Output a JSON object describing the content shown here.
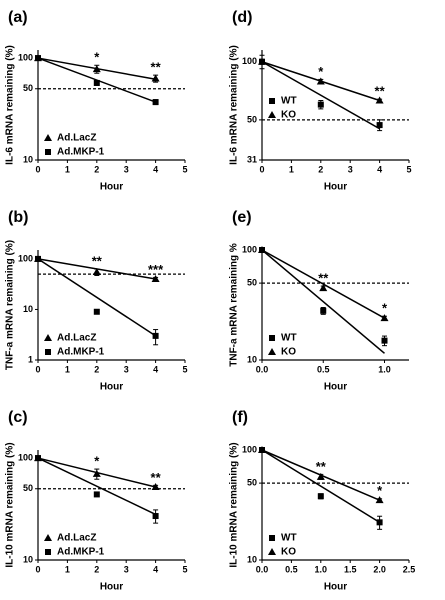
{
  "chart_data": [
    {
      "type": "scatter",
      "label": "(a)",
      "y_label": "IL-6 mRNA remaining (%)",
      "x_label": "Hour",
      "yscale": "log",
      "xlim": [
        0,
        5
      ],
      "xticks": [
        0,
        1,
        2,
        3,
        4,
        5
      ],
      "ylim": [
        10,
        120
      ],
      "yticks": [
        10,
        50,
        100
      ],
      "reference_line": 50,
      "legend": "lower left",
      "series": [
        {
          "name": "Ad.LacZ",
          "marker": "triangle",
          "color": "#000000",
          "x": [
            0,
            2,
            4
          ],
          "values": [
            100,
            78,
            63
          ],
          "errors": [
            5,
            7,
            5
          ],
          "fit": {
            "x": [
              0,
              4
            ],
            "values": [
              100,
              62
            ]
          }
        },
        {
          "name": "Ad.MKP-1",
          "marker": "square",
          "color": "#000000",
          "x": [
            0,
            2,
            4
          ],
          "values": [
            100,
            57,
            37
          ],
          "errors": [
            3,
            3,
            2
          ],
          "fit": {
            "x": [
              0,
              4
            ],
            "values": [
              100,
              37
            ]
          }
        }
      ],
      "annotations": [
        {
          "x": 2,
          "text": "*"
        },
        {
          "x": 4,
          "text": "**"
        }
      ]
    },
    {
      "type": "scatter",
      "label": "(b)",
      "y_label": "TNF-a mRNA remaining (%)",
      "x_label": "Hour",
      "yscale": "log",
      "xlim": [
        0,
        5
      ],
      "xticks": [
        0,
        1,
        2,
        3,
        4,
        5
      ],
      "ylim": [
        1,
        150
      ],
      "yticks": [
        1,
        10,
        100
      ],
      "reference_line": 50,
      "legend": "lower left",
      "series": [
        {
          "name": "Ad.LacZ",
          "marker": "triangle",
          "color": "#000000",
          "x": [
            0,
            2,
            4
          ],
          "values": [
            100,
            55,
            40
          ],
          "errors": [
            5,
            8,
            3
          ],
          "fit": {
            "x": [
              0,
              4
            ],
            "values": [
              100,
              40
            ]
          }
        },
        {
          "name": "Ad.MKP-1",
          "marker": "square",
          "color": "#000000",
          "x": [
            0,
            2,
            4
          ],
          "values": [
            100,
            9,
            3
          ],
          "errors": [
            5,
            0.5,
            1
          ],
          "fit": {
            "x": [
              0,
              4
            ],
            "values": [
              100,
              3
            ]
          }
        }
      ],
      "annotations": [
        {
          "x": 2,
          "text": "**"
        },
        {
          "x": 4,
          "text": "***"
        }
      ]
    },
    {
      "type": "scatter",
      "label": "(c)",
      "y_label": "IL-10 mRNA remaining (%)",
      "x_label": "Hour",
      "yscale": "log",
      "xlim": [
        0,
        5
      ],
      "xticks": [
        0,
        1,
        2,
        3,
        4,
        5
      ],
      "ylim": [
        10,
        120
      ],
      "yticks": [
        10,
        50,
        100
      ],
      "reference_line": 50,
      "legend": "lower left",
      "series": [
        {
          "name": "Ad.LacZ",
          "marker": "triangle",
          "color": "#000000",
          "x": [
            0,
            2,
            4
          ],
          "values": [
            100,
            70,
            52
          ],
          "errors": [
            5,
            8,
            2
          ],
          "fit": {
            "x": [
              0,
              4
            ],
            "values": [
              100,
              52
            ]
          }
        },
        {
          "name": "Ad.MKP-1",
          "marker": "square",
          "color": "#000000",
          "x": [
            0,
            2,
            4
          ],
          "values": [
            100,
            44,
            27
          ],
          "errors": [
            3,
            2,
            4
          ],
          "fit": {
            "x": [
              0,
              4
            ],
            "values": [
              100,
              28
            ]
          }
        }
      ],
      "annotations": [
        {
          "x": 2,
          "text": "*"
        },
        {
          "x": 4,
          "text": "**"
        }
      ]
    },
    {
      "type": "scatter",
      "label": "(d)",
      "y_label": "IL-6 mRNA remaining (%)",
      "x_label": "Hour",
      "yscale": "log",
      "xlim": [
        0,
        5
      ],
      "xticks": [
        0,
        1,
        2,
        3,
        4,
        5
      ],
      "ylim": [
        31,
        115
      ],
      "yticks": [
        31,
        50,
        100
      ],
      "reference_line": 50,
      "legend": "center left",
      "series": [
        {
          "name": "WT",
          "marker": "square",
          "color": "#000000",
          "x": [
            0,
            2,
            4
          ],
          "values": [
            100,
            60,
            47
          ],
          "errors": [
            8,
            3,
            3
          ],
          "fit": {
            "x": [
              0,
              4
            ],
            "values": [
              100,
              45
            ]
          }
        },
        {
          "name": "KO",
          "marker": "triangle",
          "color": "#000000",
          "x": [
            0,
            2,
            4
          ],
          "values": [
            100,
            79,
            63
          ],
          "errors": [
            3,
            2,
            1
          ],
          "fit": {
            "x": [
              0,
              4
            ],
            "values": [
              100,
              63
            ]
          }
        }
      ],
      "annotations": [
        {
          "x": 2,
          "text": "*"
        },
        {
          "x": 4,
          "text": "**"
        }
      ]
    },
    {
      "type": "scatter",
      "label": "(e)",
      "y_label": "TNF-a mRNA remaining %",
      "x_label": "Hour",
      "yscale": "log",
      "xlim": [
        0,
        1.2
      ],
      "xticks": [
        {
          "value": 0,
          "label": "0.0"
        },
        {
          "value": 0.5,
          "label": "0.5"
        },
        {
          "value": 1,
          "label": "1.0"
        }
      ],
      "ylim": [
        10,
        100
      ],
      "yticks": [
        10,
        50,
        100
      ],
      "reference_line": 50,
      "legend": "lower left",
      "series": [
        {
          "name": "WT",
          "marker": "square",
          "color": "#000000",
          "x": [
            0,
            0.5,
            1
          ],
          "values": [
            100,
            28,
            15
          ],
          "errors": [
            3,
            2,
            1.5
          ],
          "fit": {
            "x": [
              0,
              1
            ],
            "values": [
              100,
              11.5
            ]
          }
        },
        {
          "name": "KO",
          "marker": "triangle",
          "color": "#000000",
          "x": [
            0,
            0.5,
            1
          ],
          "values": [
            100,
            45,
            24
          ],
          "errors": [
            3,
            2,
            1
          ],
          "fit": {
            "x": [
              0,
              1
            ],
            "values": [
              100,
              24
            ]
          }
        }
      ],
      "annotations": [
        {
          "x": 0.5,
          "text": "**"
        },
        {
          "x": 1,
          "text": "*"
        }
      ]
    },
    {
      "type": "scatter",
      "label": "(f)",
      "y_label": "IL-10 mRNA remaining (%)",
      "x_label": "Hour",
      "yscale": "log",
      "xlim": [
        0,
        2.5
      ],
      "xticks": [
        {
          "value": 0,
          "label": "0.0"
        },
        {
          "value": 0.5,
          "label": "0.5"
        },
        {
          "value": 1,
          "label": "1.0"
        },
        {
          "value": 1.5,
          "label": "1.5"
        },
        {
          "value": 2,
          "label": "2.0"
        },
        {
          "value": 2.5,
          "label": "2.5"
        }
      ],
      "ylim": [
        10,
        100
      ],
      "yticks": [
        10,
        50,
        100
      ],
      "reference_line": 50,
      "legend": "lower left",
      "series": [
        {
          "name": "WT",
          "marker": "square",
          "color": "#000000",
          "x": [
            0,
            1,
            2
          ],
          "values": [
            100,
            38,
            22
          ],
          "errors": [
            2,
            2,
            3
          ],
          "fit": {
            "x": [
              0,
              2
            ],
            "values": [
              100,
              22
            ]
          }
        },
        {
          "name": "KO",
          "marker": "triangle",
          "color": "#000000",
          "x": [
            0,
            1,
            2
          ],
          "values": [
            100,
            57,
            35
          ],
          "errors": [
            3,
            3,
            1
          ],
          "fit": {
            "x": [
              0,
              2
            ],
            "values": [
              100,
              35
            ]
          }
        }
      ],
      "annotations": [
        {
          "x": 1,
          "text": "**"
        },
        {
          "x": 2,
          "text": "*"
        }
      ]
    }
  ]
}
